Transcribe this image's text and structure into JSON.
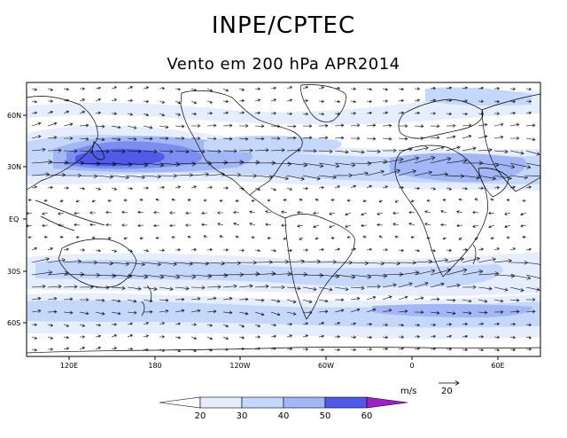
{
  "header": {
    "title": "INPE/CPTEC",
    "subtitle": "Vento em 200 hPa APR2014"
  },
  "map": {
    "lat_ticks": [
      "60N",
      "30N",
      "EQ",
      "30S",
      "60S"
    ],
    "lon_ticks": [
      "120E",
      "180",
      "120W",
      "60W",
      "0",
      "60E"
    ],
    "colors": {
      "fill_20": "#e6eefd",
      "fill_30": "#c5d7fb",
      "fill_40": "#a3b6f5",
      "fill_50": "#7b8df0",
      "fill_60": "#4f5ae6",
      "fill_70": "#a020c8",
      "coast": "#000000",
      "vector": "#000000"
    }
  },
  "legend": {
    "unit": "m/s",
    "ref_value": "20",
    "levels": [
      "20",
      "30",
      "40",
      "50",
      "60"
    ]
  }
}
